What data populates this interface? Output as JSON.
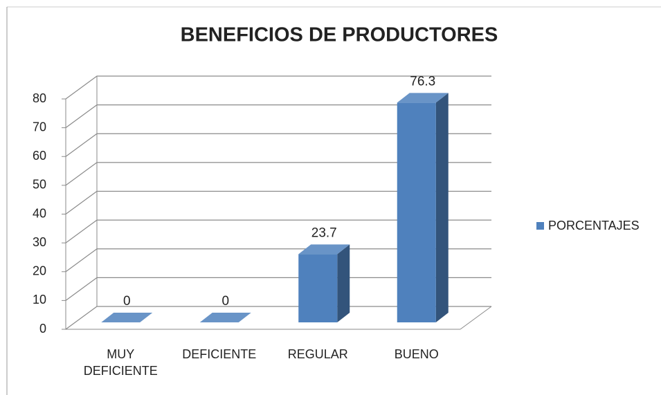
{
  "chart_data": {
    "type": "bar3d",
    "title": "BENEFICIOS DE PRODUCTORES",
    "categories": [
      "MUY DEFICIENTE",
      "DEFICIENTE",
      "REGULAR",
      "BUENO"
    ],
    "series": [
      {
        "name": "PORCENTAJES",
        "color": "#4f81bd",
        "values": [
          0,
          0,
          23.7,
          76.3
        ]
      }
    ],
    "ylim": [
      0,
      80
    ],
    "yticks": [
      0,
      10,
      20,
      30,
      40,
      50,
      60,
      70,
      80
    ],
    "grid": true,
    "legend": "right"
  }
}
